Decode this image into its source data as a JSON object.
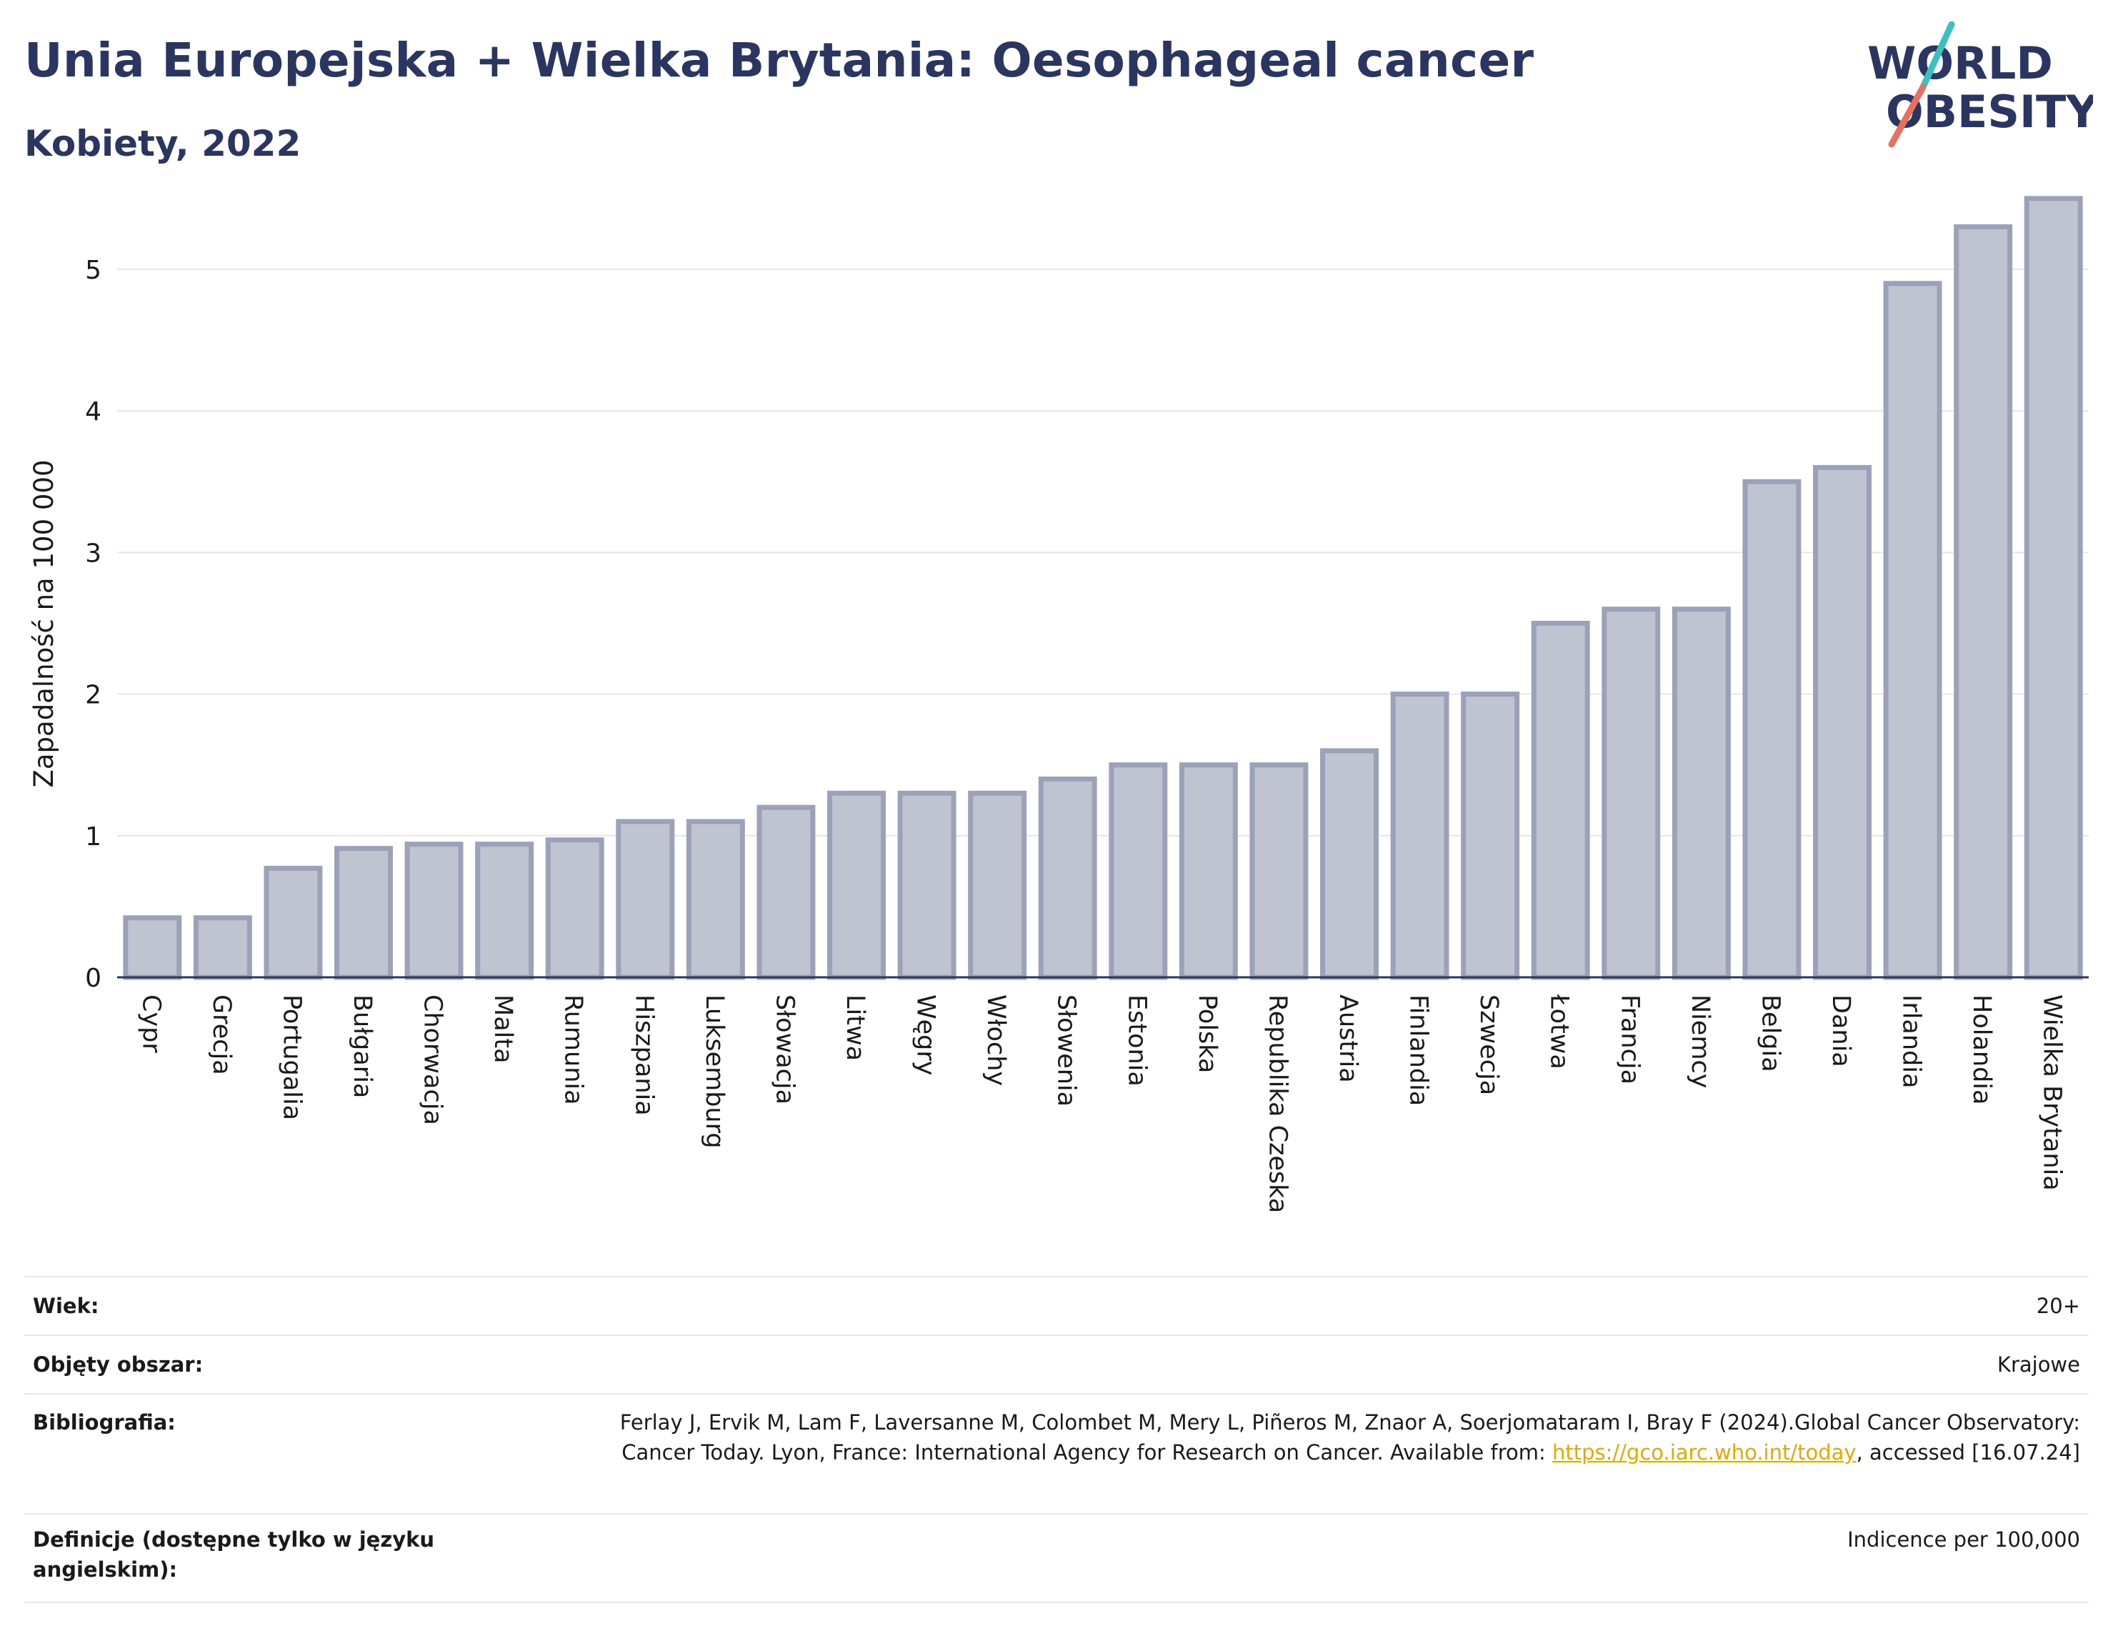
{
  "header": {
    "title": "Unia Europejska + Wielka Brytania: Oesophageal cancer",
    "subtitle": "Kobiety, 2022"
  },
  "logo": {
    "line1": "WORLD",
    "line2": "OBESITY",
    "colors": {
      "navy": "#2b3561",
      "teal": "#3cbfbf",
      "coral": "#e8705f"
    }
  },
  "colors": {
    "bar_fill": "#c0c3d0",
    "bar_stroke": "#9ba1b8",
    "axis": "#2b3561",
    "grid": "#e6e6ea",
    "text": "#1a1a1a"
  },
  "chart_data": {
    "type": "bar",
    "ylabel": "Zapadalność na 100 000",
    "ylim": [
      0,
      5.6
    ],
    "yticks": [
      0,
      1,
      2,
      3,
      4,
      5
    ],
    "grid": true,
    "categories": [
      "Cypr",
      "Grecja",
      "Portugalia",
      "Bułgaria",
      "Chorwacja",
      "Malta",
      "Rumunia",
      "Hiszpania",
      "Luksemburg",
      "Słowacja",
      "Litwa",
      "Węgry",
      "Włochy",
      "Słowenia",
      "Estonia",
      "Polska",
      "Republika Czeska",
      "Austria",
      "Finlandia",
      "Szwecja",
      "Łotwa",
      "Francja",
      "Niemcy",
      "Belgia",
      "Dania",
      "Irlandia",
      "Holandia",
      "Wielka Brytania"
    ],
    "values": [
      0.42,
      0.42,
      0.77,
      0.91,
      0.94,
      0.94,
      0.97,
      1.1,
      1.1,
      1.2,
      1.3,
      1.3,
      1.3,
      1.4,
      1.5,
      1.5,
      1.5,
      1.6,
      2.0,
      2.0,
      2.5,
      2.6,
      2.6,
      3.5,
      3.6,
      4.9,
      5.3,
      5.5
    ]
  },
  "meta": {
    "age_label": "Wiek:",
    "age_value": "20+",
    "coverage_label": "Objęty obszar:",
    "coverage_value": "Krajowe",
    "bib_label": "Bibliografia:",
    "bib_text_1": "Ferlay J, Ervik M, Lam F, Laversanne M, Colombet M, Mery L, Piñeros M, Znaor A, Soerjomataram I, Bray F (2024).Global Cancer Observatory: Cancer Today. Lyon, France: International Agency for Research on Cancer. Available from: ",
    "bib_link": "https://gco.iarc.who.int/today",
    "bib_text_2": ", accessed [16.07.24]",
    "def_label": "Definicje (dostępne tylko w języku angielskim):",
    "def_value": "Indicence per 100,000"
  }
}
